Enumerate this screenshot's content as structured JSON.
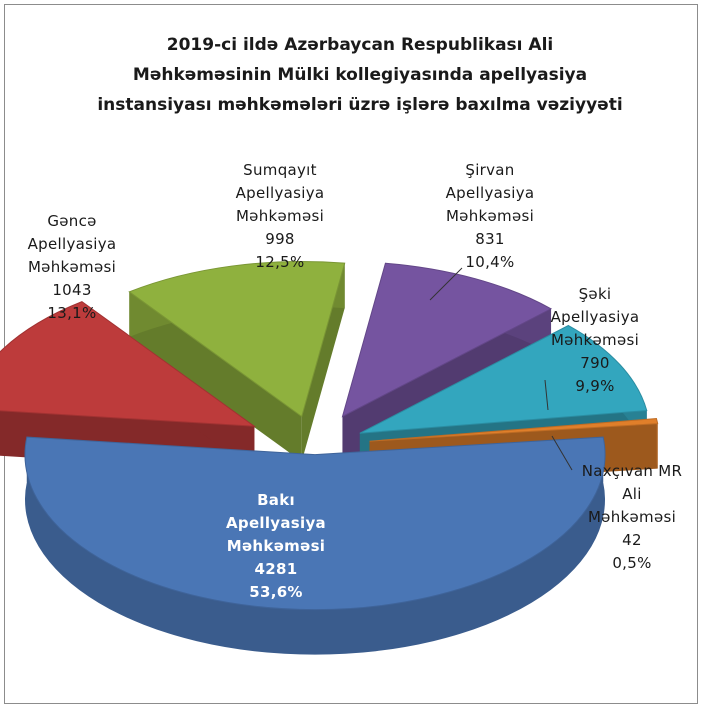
{
  "chart_data": {
    "type": "pie",
    "title_lines": [
      "2019-ci ildə Azərbaycan Respublikası Ali",
      "Məhkəməsinin Mülki  kollegiyasında  apellyasiya",
      "instansiyası məhkəmələri üzrə işlərə baxılma vəziyyəti"
    ],
    "slices": [
      {
        "label_lines": [
          "Bakı",
          "Apellyasiya",
          "Məhkəməsi"
        ],
        "value": 4281,
        "value_text": "4281",
        "percent": "53,6%",
        "color": "#4a76b5"
      },
      {
        "label_lines": [
          "Gəncə",
          "Apellyasiya",
          "Məhkəməsi"
        ],
        "value": 1043,
        "value_text": "1043",
        "percent": "13,1%",
        "color": "#bd3b3b"
      },
      {
        "label_lines": [
          "Sumqayıt",
          "Apellyasiya",
          "Məhkəməsi"
        ],
        "value": 998,
        "value_text": "998",
        "percent": "12,5%",
        "color": "#8fb13e"
      },
      {
        "label_lines": [
          "Şirvan",
          "Apellyasiya",
          "Məhkəməsi"
        ],
        "value": 831,
        "value_text": "831",
        "percent": "10,4%",
        "color": "#7554a0"
      },
      {
        "label_lines": [
          "Şəki",
          "Apellyasiya",
          "Məhkəməsi"
        ],
        "value": 790,
        "value_text": "790",
        "percent": "9,9%",
        "color": "#33a6be"
      },
      {
        "label_lines": [
          "Naxçıvan MR",
          "Ali",
          "Məhkəməsi"
        ],
        "value": 42,
        "value_text": "42",
        "percent": "0,5%",
        "color": "#e07f2a"
      }
    ],
    "view": "3d-exploded",
    "legend": "none"
  }
}
